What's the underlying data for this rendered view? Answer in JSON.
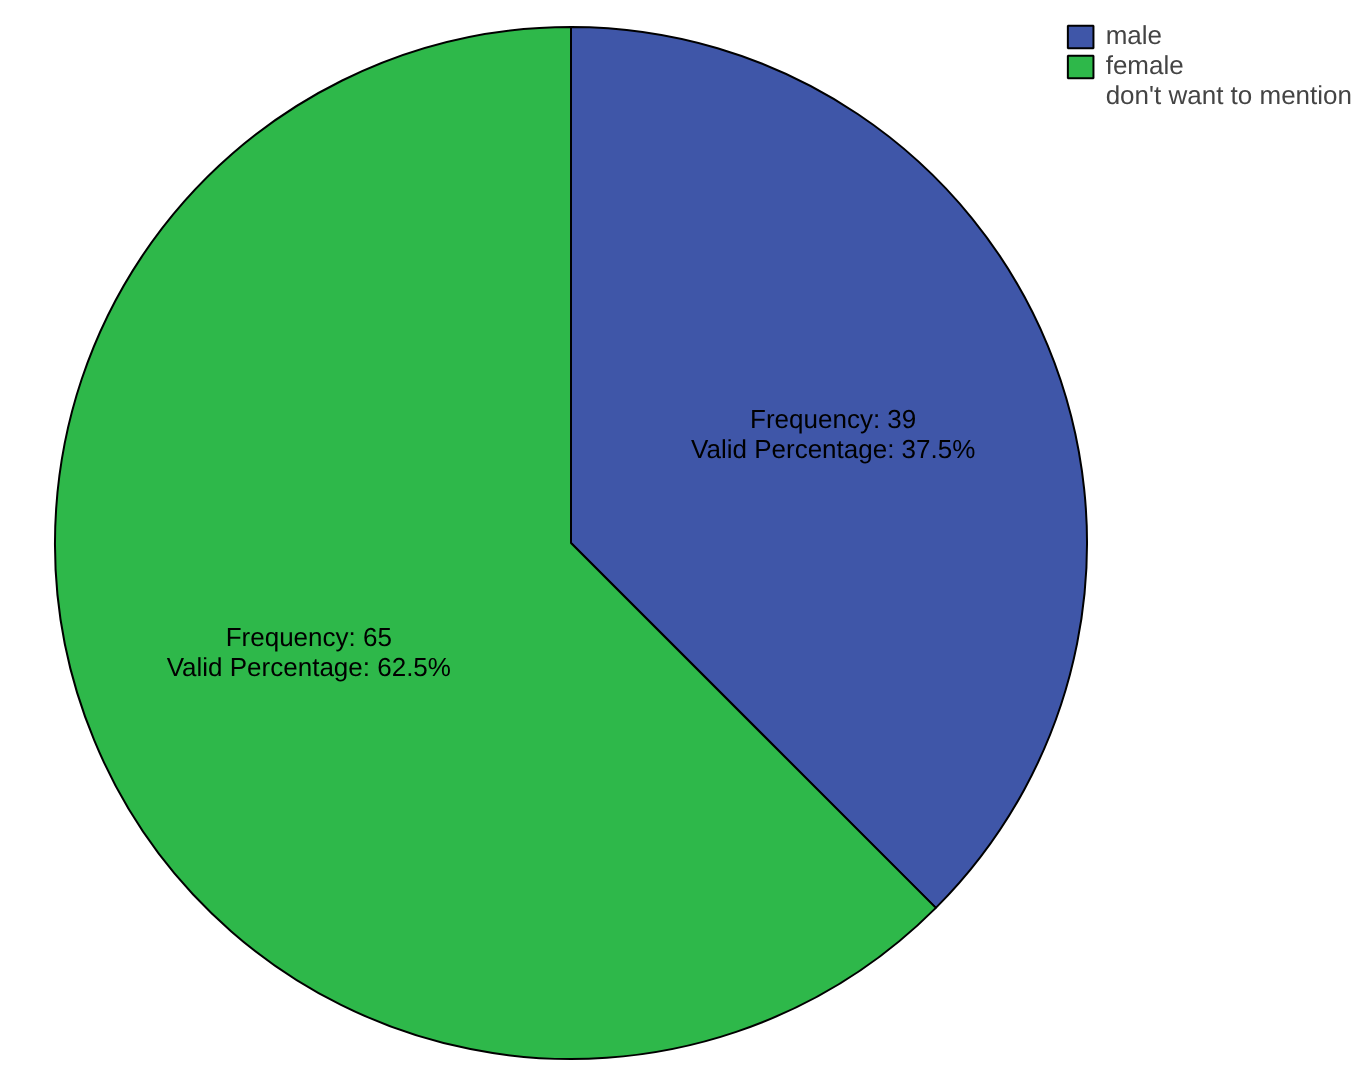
{
  "chart_data": {
    "type": "pie",
    "categories": [
      "male",
      "female",
      "don't want to mention"
    ],
    "values": [
      39,
      65,
      0
    ],
    "colors": [
      "#3f56a8",
      "#2eb84a",
      "#d8cda0"
    ],
    "value_labels": [
      "Frequency: 39\nValid Percentage: 37.5%",
      "Frequency: 65\nValid Percentage: 62.5%",
      null
    ],
    "legend": "top right"
  }
}
